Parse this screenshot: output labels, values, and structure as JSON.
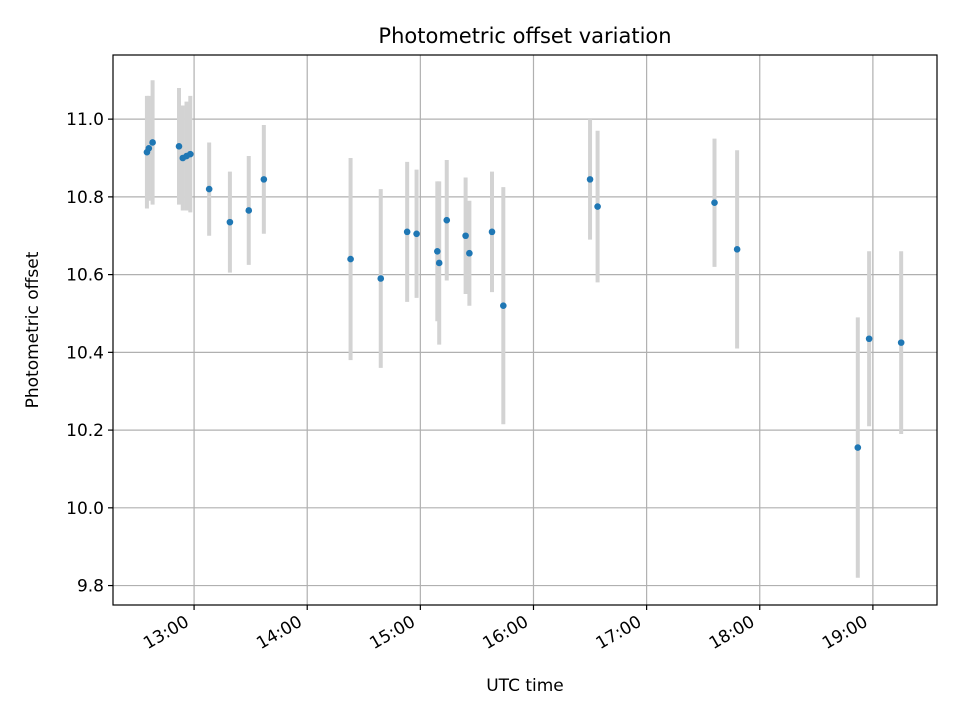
{
  "chart_data": {
    "type": "scatter",
    "title": "Photometric offset variation",
    "xlabel": "UTC time",
    "ylabel": "Photometric offset",
    "x_ticks": [
      "13:00",
      "14:00",
      "15:00",
      "16:00",
      "17:00",
      "18:00",
      "19:00"
    ],
    "y_ticks": [
      "9.8",
      "10.0",
      "10.2",
      "10.4",
      "10.6",
      "10.8",
      "11.0"
    ],
    "xlim": [
      "12:17",
      "19:34"
    ],
    "ylim": [
      9.75,
      11.165
    ],
    "grid": true,
    "marker_color": "#1f77b4",
    "errorbar_color": "#d3d3d3",
    "points": [
      {
        "x": "12:35",
        "y": 10.915,
        "err": 0.145
      },
      {
        "x": "12:36",
        "y": 10.925,
        "err": 0.135
      },
      {
        "x": "12:38",
        "y": 10.94,
        "err": 0.16
      },
      {
        "x": "12:52",
        "y": 10.93,
        "err": 0.15
      },
      {
        "x": "12:54",
        "y": 10.9,
        "err": 0.135
      },
      {
        "x": "12:56",
        "y": 10.905,
        "err": 0.14
      },
      {
        "x": "12:58",
        "y": 10.91,
        "err": 0.15
      },
      {
        "x": "13:08",
        "y": 10.82,
        "err": 0.12
      },
      {
        "x": "13:19",
        "y": 10.735,
        "err": 0.13
      },
      {
        "x": "13:29",
        "y": 10.765,
        "err": 0.14
      },
      {
        "x": "13:37",
        "y": 10.845,
        "err": 0.14
      },
      {
        "x": "14:23",
        "y": 10.64,
        "err": 0.26
      },
      {
        "x": "14:39",
        "y": 10.59,
        "err": 0.23
      },
      {
        "x": "14:53",
        "y": 10.71,
        "err": 0.18
      },
      {
        "x": "14:58",
        "y": 10.705,
        "err": 0.165
      },
      {
        "x": "15:09",
        "y": 10.66,
        "err": 0.18
      },
      {
        "x": "15:10",
        "y": 10.63,
        "err": 0.21
      },
      {
        "x": "15:14",
        "y": 10.74,
        "err": 0.155
      },
      {
        "x": "15:24",
        "y": 10.7,
        "err": 0.15
      },
      {
        "x": "15:26",
        "y": 10.655,
        "err": 0.135
      },
      {
        "x": "15:38",
        "y": 10.71,
        "err": 0.155
      },
      {
        "x": "15:44",
        "y": 10.52,
        "err": 0.305
      },
      {
        "x": "16:30",
        "y": 10.845,
        "err": 0.155
      },
      {
        "x": "16:34",
        "y": 10.775,
        "err": 0.195
      },
      {
        "x": "17:36",
        "y": 10.785,
        "err": 0.165
      },
      {
        "x": "17:48",
        "y": 10.665,
        "err": 0.255
      },
      {
        "x": "18:52",
        "y": 10.155,
        "err": 0.335
      },
      {
        "x": "18:58",
        "y": 10.435,
        "err": 0.225
      },
      {
        "x": "19:15",
        "y": 10.425,
        "err": 0.235
      }
    ]
  }
}
